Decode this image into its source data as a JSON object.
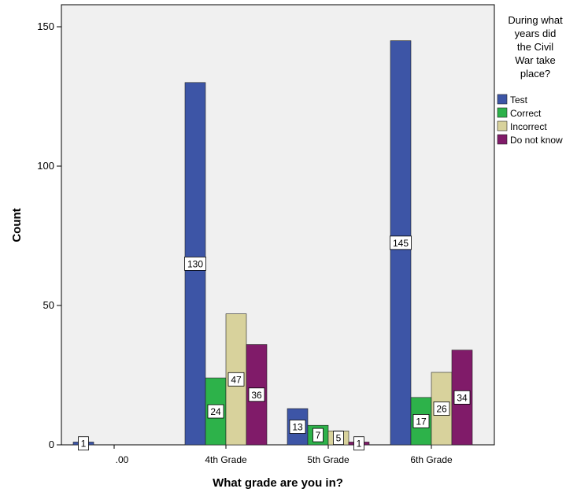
{
  "chart_data": {
    "type": "bar",
    "title": "",
    "xlabel": "What grade are you in?",
    "ylabel": "Count",
    "ylim": [
      0,
      155
    ],
    "yticks": [
      0,
      50,
      100,
      150
    ],
    "grid": false,
    "legend_position": "right",
    "legend_title_lines": [
      "During what",
      "years did",
      "the Civil",
      "War take",
      "place?"
    ],
    "categories": [
      ".00",
      "4th Grade",
      "5th Grade",
      "6th Grade"
    ],
    "series": [
      {
        "name": "Test",
        "color": "#3d55a6",
        "values": [
          1,
          130,
          13,
          145
        ]
      },
      {
        "name": "Correct",
        "color": "#2db24a",
        "values": [
          0,
          24,
          7,
          17
        ]
      },
      {
        "name": "Incorrect",
        "color": "#d8d29c",
        "values": [
          0,
          47,
          5,
          26
        ]
      },
      {
        "name": "Do not know",
        "color": "#801b69",
        "values": [
          0,
          36,
          1,
          34
        ]
      }
    ],
    "data_labels": [
      [
        "1",
        null,
        null,
        null
      ],
      [
        "130",
        "24",
        "47",
        "36"
      ],
      [
        "13",
        "7",
        "5",
        "1"
      ],
      [
        "145",
        "17",
        "26",
        "34"
      ]
    ],
    "plot_background": "#f0f0f0"
  }
}
